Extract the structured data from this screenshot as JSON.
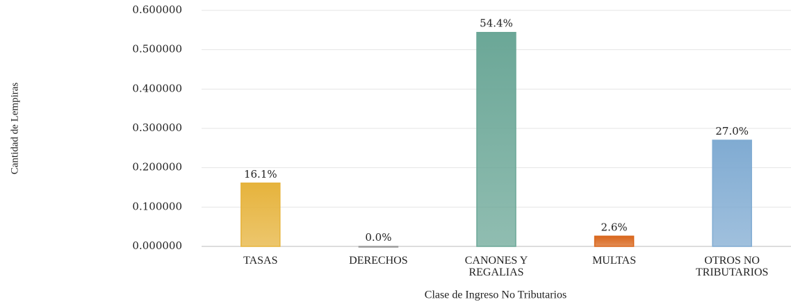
{
  "chart_data": {
    "type": "bar",
    "xlabel": "Clase de Ingreso No Tributarios",
    "ylabel": "Cantidad de Lempiras",
    "categories": [
      "TASAS",
      "DERECHOS",
      "CANONES Y REGALIAS",
      "MULTAS",
      "OTROS NO TRIBUTARIOS"
    ],
    "values": [
      0.161,
      0.0,
      0.544,
      0.026,
      0.27
    ],
    "value_labels": [
      "16.1%",
      "0.0%",
      "54.4%",
      "2.6%",
      "27.0%"
    ],
    "colors": [
      "#e6b33c",
      "#9a9a9a",
      "#6ba797",
      "#d9671d",
      "#80abd2"
    ],
    "ylim": [
      0,
      0.6
    ],
    "yticks": [
      {
        "value": 0,
        "label": "0.000000"
      },
      {
        "value": 0.1,
        "label": "0.100000"
      },
      {
        "value": 0.2,
        "label": "0.200000"
      },
      {
        "value": 0.3,
        "label": "0.300000"
      },
      {
        "value": 0.4,
        "label": "0.400000"
      },
      {
        "value": 0.5,
        "label": "0.500000"
      },
      {
        "value": 0.6,
        "label": "0.600000"
      }
    ],
    "grid": true
  }
}
